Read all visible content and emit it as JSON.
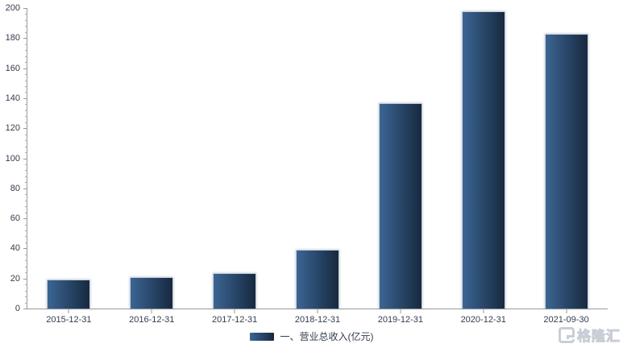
{
  "chart_data": {
    "type": "bar",
    "title": "",
    "categories": [
      "2015-12-31",
      "2016-12-31",
      "2017-12-31",
      "2018-12-31",
      "2019-12-31",
      "2020-12-31",
      "2021-09-30"
    ],
    "series": [
      {
        "name": "一、营业总收入(亿元)",
        "values": [
          19.5,
          21,
          23.5,
          39,
          136.5,
          198,
          183
        ]
      }
    ],
    "xlabel": "",
    "ylabel": "",
    "ylim": [
      0,
      200
    ],
    "y_ticks": [
      0,
      20,
      40,
      60,
      80,
      100,
      120,
      140,
      160,
      180,
      200
    ],
    "minor_tick_step": 4,
    "grid": "off",
    "legend_position": "bottom-center",
    "bar_color_start": "#3b6594",
    "bar_color_end": "#17293f",
    "axis_color": "#999999",
    "label_color": "#333c4e"
  },
  "legend": {
    "label": "一、营业总收入(亿元)"
  },
  "watermark": {
    "icon": "gelonghui-logo",
    "logo_letter": "G",
    "text": "格隆汇"
  }
}
